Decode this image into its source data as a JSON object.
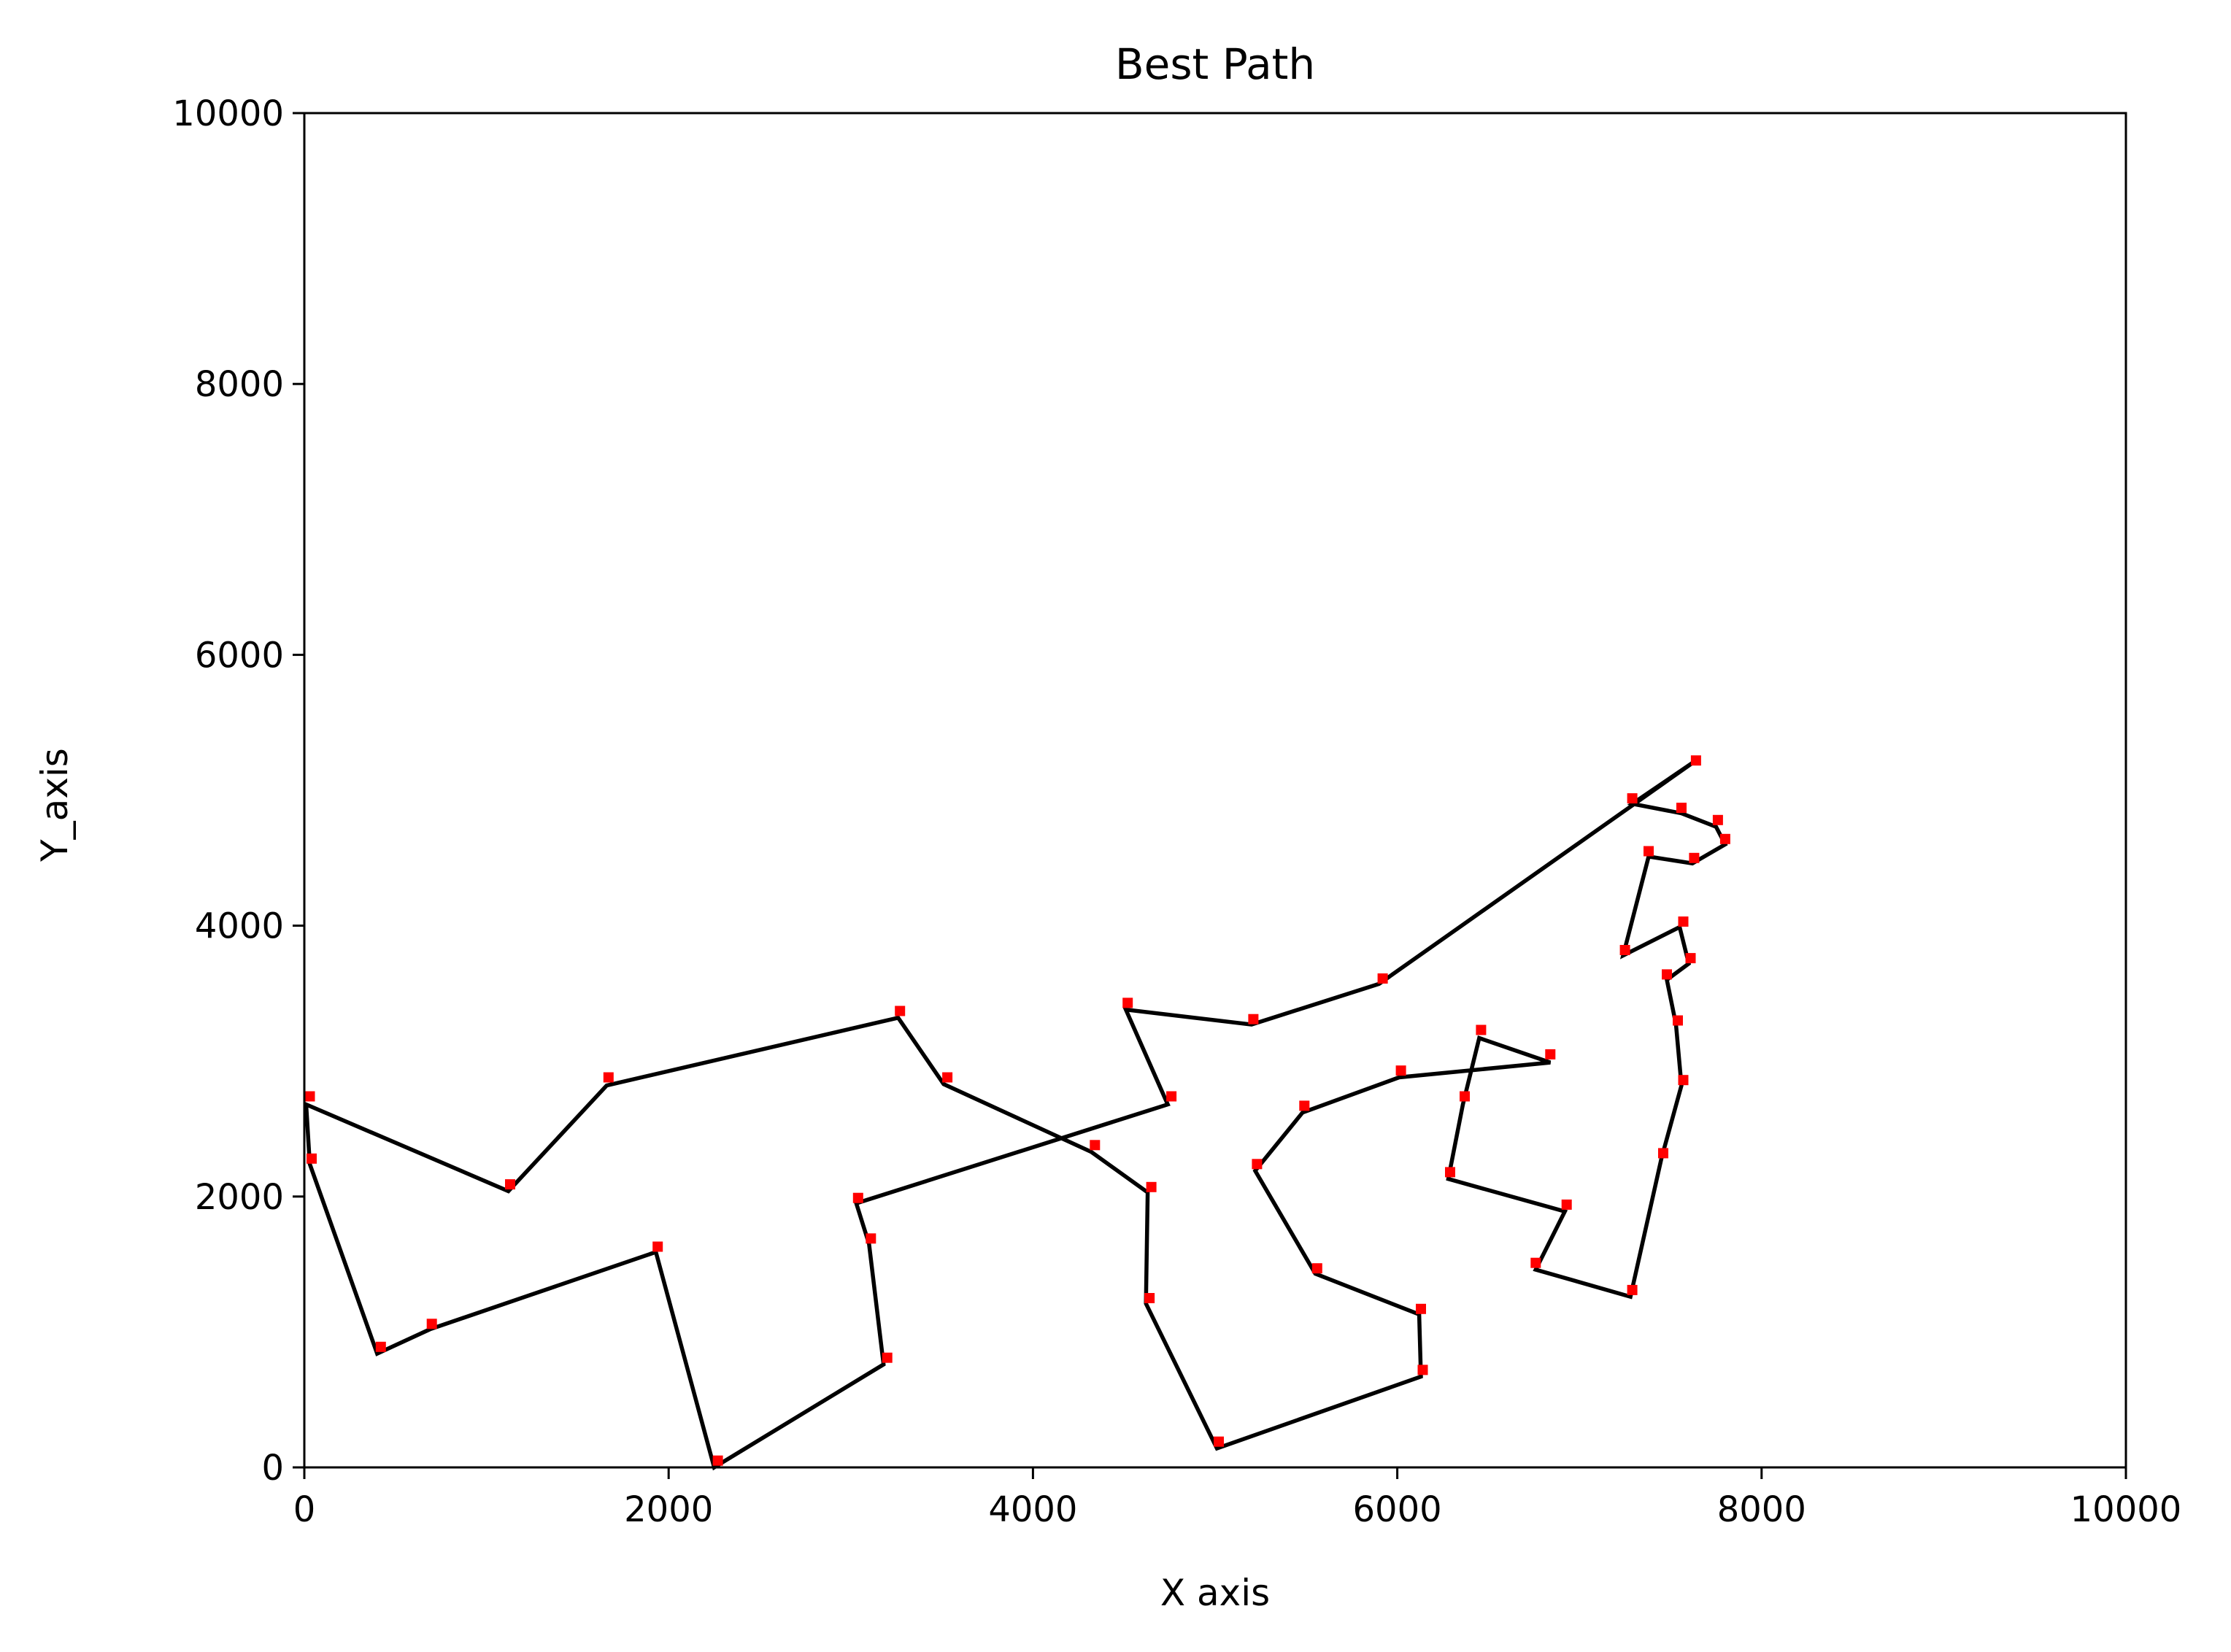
{
  "chart_data": {
    "type": "line",
    "title": "Best Path",
    "xlabel": "X axis",
    "ylabel": "Y_axis",
    "xlim": [
      0,
      10000
    ],
    "ylim": [
      0,
      10000
    ],
    "xticks": [
      0,
      2000,
      4000,
      6000,
      8000,
      10000
    ],
    "yticks": [
      0,
      2000,
      4000,
      6000,
      8000,
      10000
    ],
    "grid": false,
    "legend": "none",
    "line_color": "#000000",
    "marker_color": "#ff0000",
    "series": [
      {
        "path": [
          [
            7640,
            5220
          ],
          [
            7290,
            4900
          ],
          [
            7560,
            4830
          ],
          [
            7750,
            4730
          ],
          [
            7800,
            4600
          ],
          [
            7620,
            4460
          ],
          [
            7380,
            4510
          ],
          [
            7240,
            3780
          ],
          [
            7550,
            3990
          ],
          [
            7600,
            3720
          ],
          [
            7480,
            3600
          ],
          [
            7530,
            3270
          ],
          [
            7560,
            2820
          ],
          [
            7450,
            2280
          ],
          [
            7280,
            1260
          ],
          [
            6760,
            1460
          ],
          [
            6920,
            1890
          ],
          [
            6280,
            2130
          ],
          [
            6360,
            2680
          ],
          [
            6450,
            3170
          ],
          [
            6840,
            2990
          ],
          [
            6010,
            2880
          ],
          [
            5480,
            2620
          ],
          [
            5220,
            2190
          ],
          [
            5550,
            1430
          ],
          [
            6120,
            1130
          ],
          [
            6130,
            670
          ],
          [
            5010,
            140
          ],
          [
            4620,
            1210
          ],
          [
            4630,
            2030
          ],
          [
            4320,
            2330
          ],
          [
            3510,
            2830
          ],
          [
            3260,
            3320
          ],
          [
            1660,
            2820
          ],
          [
            1120,
            2040
          ],
          [
            10,
            2680
          ],
          [
            30,
            2240
          ],
          [
            400,
            840
          ],
          [
            690,
            1020
          ],
          [
            1930,
            1590
          ],
          [
            2250,
            0
          ],
          [
            3180,
            760
          ],
          [
            3100,
            1650
          ],
          [
            3030,
            1950
          ],
          [
            4740,
            2680
          ],
          [
            4510,
            3380
          ],
          [
            5200,
            3270
          ],
          [
            5900,
            3570
          ],
          [
            7640,
            5220
          ]
        ],
        "cities": [
          [
            7640,
            5220
          ],
          [
            7290,
            4940
          ],
          [
            7560,
            4870
          ],
          [
            7760,
            4780
          ],
          [
            7800,
            4640
          ],
          [
            7630,
            4500
          ],
          [
            7380,
            4550
          ],
          [
            7250,
            3820
          ],
          [
            7570,
            4030
          ],
          [
            7610,
            3760
          ],
          [
            7480,
            3640
          ],
          [
            7540,
            3300
          ],
          [
            7570,
            2860
          ],
          [
            7460,
            2320
          ],
          [
            7290,
            1310
          ],
          [
            6760,
            1510
          ],
          [
            6930,
            1940
          ],
          [
            6290,
            2180
          ],
          [
            6370,
            2740
          ],
          [
            6460,
            3230
          ],
          [
            6840,
            3050
          ],
          [
            6020,
            2930
          ],
          [
            5490,
            2670
          ],
          [
            5230,
            2240
          ],
          [
            5560,
            1470
          ],
          [
            6130,
            1170
          ],
          [
            6140,
            720
          ],
          [
            5020,
            190
          ],
          [
            4640,
            1250
          ],
          [
            4650,
            2070
          ],
          [
            4340,
            2380
          ],
          [
            3530,
            2880
          ],
          [
            3270,
            3370
          ],
          [
            1670,
            2880
          ],
          [
            1130,
            2090
          ],
          [
            30,
            2740
          ],
          [
            40,
            2280
          ],
          [
            420,
            890
          ],
          [
            700,
            1060
          ],
          [
            1940,
            1630
          ],
          [
            2270,
            50
          ],
          [
            3200,
            810
          ],
          [
            3110,
            1690
          ],
          [
            3040,
            1990
          ],
          [
            4760,
            2740
          ],
          [
            4520,
            3430
          ],
          [
            5210,
            3310
          ],
          [
            5920,
            3610
          ]
        ]
      }
    ]
  }
}
